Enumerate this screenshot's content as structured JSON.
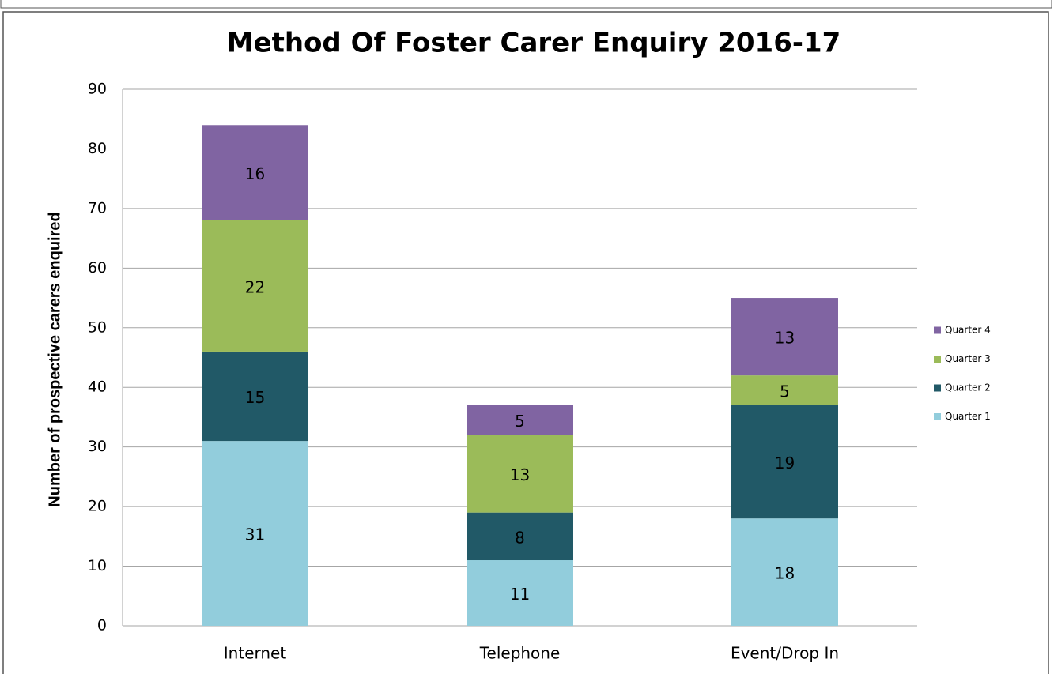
{
  "chart_data": {
    "type": "stacked_bar",
    "title": "Method Of Foster Carer Enquiry 2016-17",
    "y_label": "Number of prospective carers enquired",
    "categories": [
      "Internet",
      "Telephone",
      "Event/Drop In"
    ],
    "series": [
      {
        "name": "Quarter 1",
        "color": "#92cddc",
        "values": [
          31,
          11,
          18
        ]
      },
      {
        "name": "Quarter 2",
        "color": "#215967",
        "values": [
          15,
          8,
          19
        ]
      },
      {
        "name": "Quarter 3",
        "color": "#9bbb59",
        "values": [
          22,
          13,
          5
        ]
      },
      {
        "name": "Quarter 4",
        "color": "#8064a2",
        "values": [
          16,
          5,
          13
        ]
      }
    ],
    "ylim": [
      0,
      90
    ],
    "yticks": [
      0,
      10,
      20,
      30,
      40,
      50,
      60,
      70,
      80,
      90
    ],
    "grid": true,
    "legend": "right"
  }
}
